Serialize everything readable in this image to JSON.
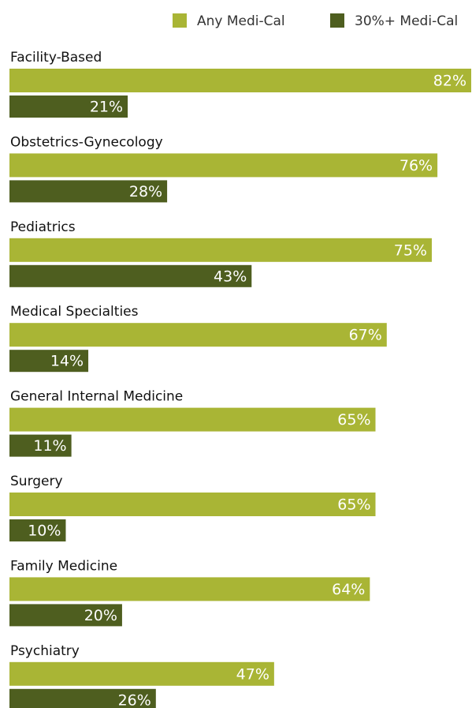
{
  "chart_data": {
    "type": "bar",
    "orientation": "horizontal",
    "categories": [
      "Facility-Based",
      "Obstetrics-Gynecology",
      "Pediatrics",
      "Medical Specialties",
      "General Internal Medicine",
      "Surgery",
      "Family Medicine",
      "Psychiatry"
    ],
    "series": [
      {
        "name": "Any Medi-Cal",
        "color": "#a9b535",
        "values": [
          82,
          76,
          75,
          67,
          65,
          65,
          64,
          47
        ],
        "value_labels": [
          "82%",
          "76%",
          "75%",
          "67%",
          "65%",
          "65%",
          "64%",
          "47%"
        ]
      },
      {
        "name": "30%+ Medi-Cal",
        "color": "#4e5e1f",
        "values": [
          21,
          28,
          43,
          14,
          11,
          10,
          20,
          26
        ],
        "value_labels": [
          "21%",
          "28%",
          "43%",
          "14%",
          "11%",
          "10%",
          "20%",
          "26%"
        ]
      }
    ],
    "legend": "top-right"
  }
}
